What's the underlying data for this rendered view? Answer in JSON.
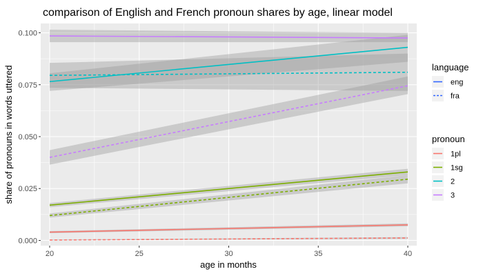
{
  "chart_data": {
    "type": "line",
    "title": "comparison of English and French pronoun shares  by age, linear model",
    "xlabel": "age in months",
    "ylabel": "share of pronouns in words uttered",
    "xlim": [
      19.5,
      40.5
    ],
    "ylim": [
      -0.0025,
      0.1045
    ],
    "x_ticks": [
      20,
      25,
      30,
      35,
      40
    ],
    "x_tick_labels": [
      "20",
      "25",
      "30",
      "35",
      "40"
    ],
    "y_ticks": [
      0.0,
      0.025,
      0.05,
      0.075,
      0.1
    ],
    "y_tick_labels": [
      "0.000",
      "0.025",
      "0.050",
      "0.075",
      "0.100"
    ],
    "grid": true,
    "legend_position": "right",
    "legends": [
      {
        "title": "language",
        "entries": [
          {
            "label": "eng",
            "linetype": "solid"
          },
          {
            "label": "fra",
            "linetype": "dashed"
          }
        ]
      },
      {
        "title": "pronoun",
        "entries": [
          {
            "label": "1pl",
            "color": "#F8766D"
          },
          {
            "label": "1sg",
            "color": "#7CAE00"
          },
          {
            "label": "2",
            "color": "#00BFC4"
          },
          {
            "label": "3",
            "color": "#C77CFF"
          }
        ]
      }
    ],
    "series": [
      {
        "name": "3",
        "language": "eng",
        "pronoun": "3",
        "color": "#C77CFF",
        "linetype": "solid",
        "x": [
          20,
          40
        ],
        "y": [
          0.0985,
          0.0975
        ],
        "ci_low": [
          0.0955,
          0.0955
        ],
        "ci_high": [
          0.1015,
          0.1
        ]
      },
      {
        "name": "3",
        "language": "fra",
        "pronoun": "3",
        "color": "#C77CFF",
        "linetype": "dashed",
        "x": [
          20,
          40
        ],
        "y": [
          0.04,
          0.0745
        ],
        "ci_low": [
          0.0365,
          0.0705
        ],
        "ci_high": [
          0.0435,
          0.079
        ]
      },
      {
        "name": "2",
        "language": "eng",
        "pronoun": "2",
        "color": "#00BFC4",
        "linetype": "solid",
        "x": [
          20,
          40
        ],
        "y": [
          0.0765,
          0.093
        ],
        "ci_low": [
          0.072,
          0.086
        ],
        "ci_high": [
          0.0805,
          0.099
        ]
      },
      {
        "name": "2",
        "language": "fra",
        "pronoun": "2",
        "color": "#00BFC4",
        "linetype": "dashed",
        "x": [
          20,
          40
        ],
        "y": [
          0.0795,
          0.081
        ],
        "ci_low": [
          0.0735,
          0.072
        ],
        "ci_high": [
          0.0855,
          0.09
        ]
      },
      {
        "name": "1sg",
        "language": "eng",
        "pronoun": "1sg",
        "color": "#7CAE00",
        "linetype": "solid",
        "x": [
          20,
          40
        ],
        "y": [
          0.017,
          0.033
        ],
        "ci_low": [
          0.016,
          0.0315
        ],
        "ci_high": [
          0.018,
          0.0345
        ]
      },
      {
        "name": "1sg",
        "language": "fra",
        "pronoun": "1sg",
        "color": "#7CAE00",
        "linetype": "dashed",
        "x": [
          20,
          40
        ],
        "y": [
          0.012,
          0.0295
        ],
        "ci_low": [
          0.011,
          0.0275
        ],
        "ci_high": [
          0.013,
          0.0315
        ]
      },
      {
        "name": "1pl",
        "language": "eng",
        "pronoun": "1pl",
        "color": "#F8766D",
        "linetype": "solid",
        "x": [
          20,
          40
        ],
        "y": [
          0.004,
          0.0075
        ],
        "ci_low": [
          0.0035,
          0.0068
        ],
        "ci_high": [
          0.0045,
          0.0082
        ]
      },
      {
        "name": "1pl",
        "language": "fra",
        "pronoun": "1pl",
        "color": "#F8766D",
        "linetype": "dashed",
        "x": [
          20,
          40
        ],
        "y": [
          0.0002,
          0.0012
        ],
        "ci_low": [
          0.0,
          0.0008
        ],
        "ci_high": [
          0.0004,
          0.0016
        ]
      }
    ]
  }
}
